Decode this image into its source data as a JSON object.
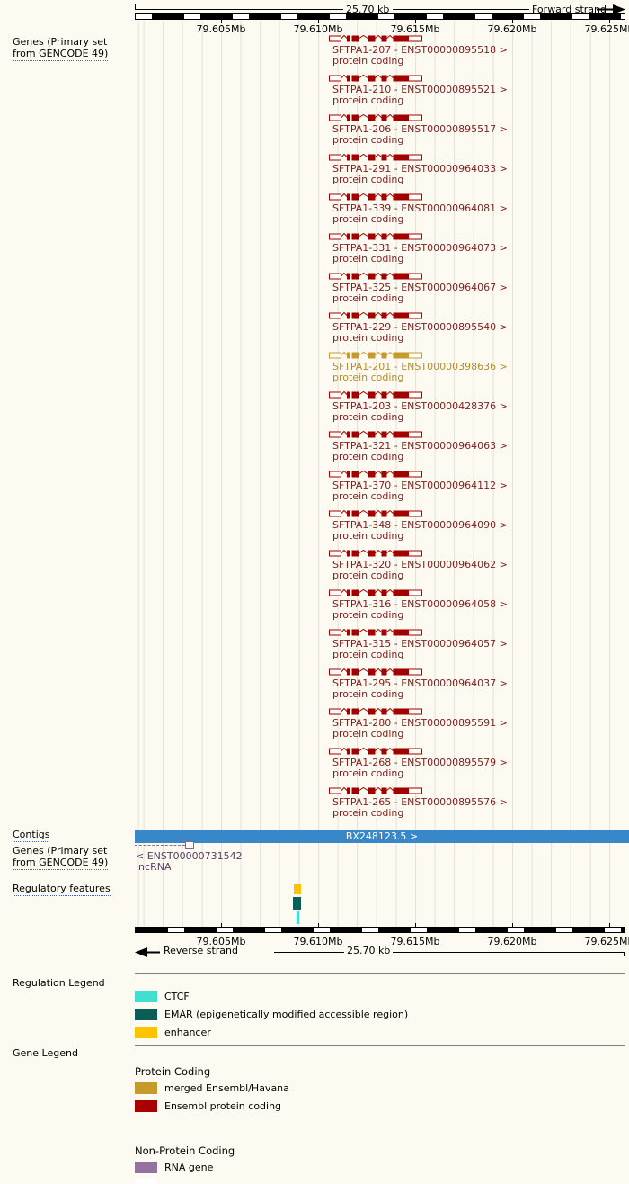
{
  "ruler_top": {
    "scale": "25.70 kb",
    "strand": "Forward strand"
  },
  "ruler_bottom": {
    "scale": "25.70 kb",
    "strand": "Reverse strand"
  },
  "coordinate_labels": [
    "79.605Mb",
    "79.610Mb",
    "79.615Mb",
    "79.620Mb",
    "79.625Mb"
  ],
  "sidebar": {
    "genes_track": {
      "line1": "Genes (Primary set",
      "line2": "from GENCODE 49)"
    },
    "contigs": "Contigs",
    "genes_track2": {
      "line1": "Genes (Primary set",
      "line2": "from GENCODE 49)"
    },
    "regulatory": "Regulatory features",
    "regulation_legend": "Regulation Legend",
    "gene_legend": "Gene Legend"
  },
  "transcripts": [
    {
      "label": "SFTPA1-207 - ENST00000895518 >",
      "biotype": "protein coding",
      "type": "ensembl"
    },
    {
      "label": "SFTPA1-210 - ENST00000895521 >",
      "biotype": "protein coding",
      "type": "ensembl"
    },
    {
      "label": "SFTPA1-206 - ENST00000895517 >",
      "biotype": "protein coding",
      "type": "ensembl"
    },
    {
      "label": "SFTPA1-291 - ENST00000964033 >",
      "biotype": "protein coding",
      "type": "ensembl"
    },
    {
      "label": "SFTPA1-339 - ENST00000964081 >",
      "biotype": "protein coding",
      "type": "ensembl"
    },
    {
      "label": "SFTPA1-331 - ENST00000964073 >",
      "biotype": "protein coding",
      "type": "ensembl"
    },
    {
      "label": "SFTPA1-325 - ENST00000964067 >",
      "biotype": "protein coding",
      "type": "ensembl"
    },
    {
      "label": "SFTPA1-229 - ENST00000895540 >",
      "biotype": "protein coding",
      "type": "ensembl"
    },
    {
      "label": "SFTPA1-201 - ENST00000398636 >",
      "biotype": "protein coding",
      "type": "merged"
    },
    {
      "label": "SFTPA1-203 - ENST00000428376 >",
      "biotype": "protein coding",
      "type": "ensembl"
    },
    {
      "label": "SFTPA1-321 - ENST00000964063 >",
      "biotype": "protein coding",
      "type": "ensembl"
    },
    {
      "label": "SFTPA1-370 - ENST00000964112 >",
      "biotype": "protein coding",
      "type": "ensembl"
    },
    {
      "label": "SFTPA1-348 - ENST00000964090 >",
      "biotype": "protein coding",
      "type": "ensembl"
    },
    {
      "label": "SFTPA1-320 - ENST00000964062 >",
      "biotype": "protein coding",
      "type": "ensembl"
    },
    {
      "label": "SFTPA1-316 - ENST00000964058 >",
      "biotype": "protein coding",
      "type": "ensembl"
    },
    {
      "label": "SFTPA1-315 - ENST00000964057 >",
      "biotype": "protein coding",
      "type": "ensembl"
    },
    {
      "label": "SFTPA1-295 - ENST00000964037 >",
      "biotype": "protein coding",
      "type": "ensembl"
    },
    {
      "label": "SFTPA1-280 - ENST00000895591 >",
      "biotype": "protein coding",
      "type": "ensembl"
    },
    {
      "label": "SFTPA1-268 - ENST00000895579 >",
      "biotype": "protein coding",
      "type": "ensembl"
    },
    {
      "label": "SFTPA1-265 - ENST00000895576 >",
      "biotype": "protein coding",
      "type": "ensembl"
    }
  ],
  "contig": {
    "name": "BX248123.5 >",
    "color": "#3787c9"
  },
  "lncrna": {
    "label": "< ENST00000731542",
    "biotype": "lncRNA"
  },
  "regulatory_marks": {
    "enhancer": "#fbc400",
    "emar": "#0b5d57",
    "ctcf": "#40e0d0"
  },
  "regulation_legend": {
    "items": [
      {
        "label": "CTCF",
        "color": "#40e0d0"
      },
      {
        "label": "EMAR (epigenetically modified accessible region)",
        "color": "#0b5d57"
      },
      {
        "label": "enhancer",
        "color": "#fbc400"
      }
    ]
  },
  "gene_legend": {
    "sections": [
      {
        "header": "Protein Coding",
        "items": [
          {
            "label": "merged Ensembl/Havana",
            "color": "#c79a2e"
          },
          {
            "label": "Ensembl protein coding",
            "color": "#a60000"
          }
        ]
      },
      {
        "header": "Non-Protein Coding",
        "items": [
          {
            "label": "RNA gene",
            "color": "#96719d"
          }
        ]
      }
    ]
  }
}
